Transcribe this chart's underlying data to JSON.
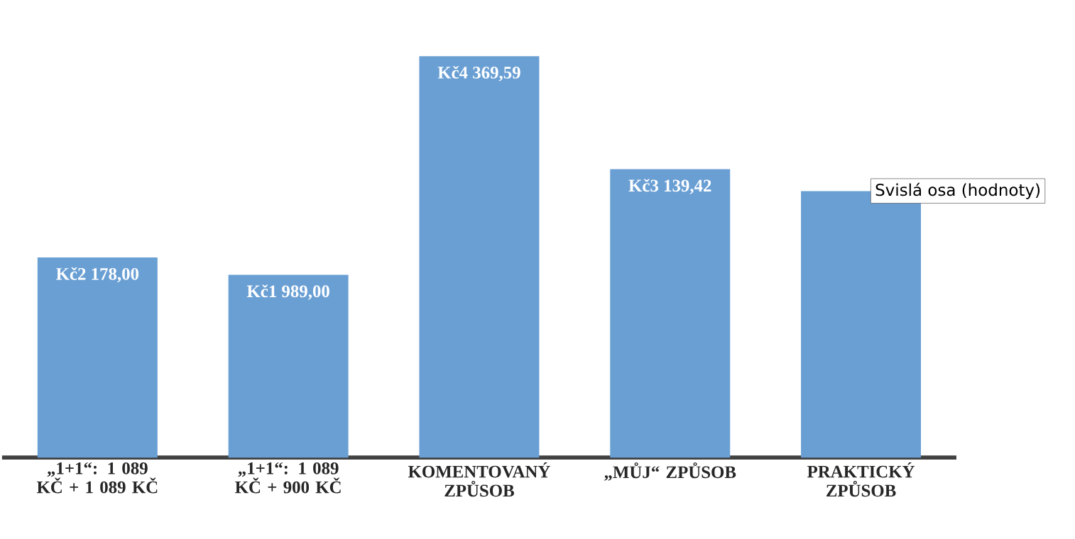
{
  "chart_data": {
    "type": "bar",
    "categories": [
      "„1+1“: 1 089 KČ + 1 089 KČ",
      "„1+1“: 1 089 KČ + 900 KČ",
      "KOMENTOVANÝ ZPŮSOB",
      "„MŮJ“ ZPŮSOB",
      "PRAKTICKÝ ZPŮSOB"
    ],
    "values": [
      2178.0,
      1989.0,
      4369.59,
      3139.42,
      2900
    ],
    "value_labels": [
      "Kč2 178,00",
      "Kč1 989,00",
      "Kč4 369,59",
      "Kč3 139,42",
      null
    ],
    "color": "#6a9fd4",
    "tick_labels": "x",
    "annotations": [
      "Svislá osa (hodnoty)"
    ]
  }
}
